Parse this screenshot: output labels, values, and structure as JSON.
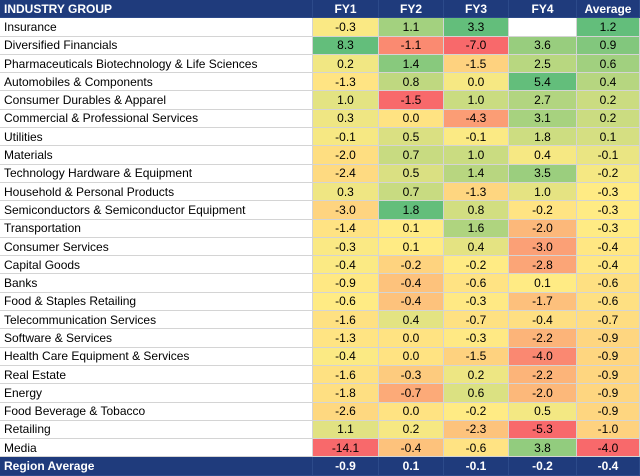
{
  "colors": {
    "header_bg": "#1f3b7c",
    "footer_bg": "#1f3b7c",
    "header_text": "#ffffff",
    "scale_low": "#f8696b",
    "scale_mid": "#ffeb84",
    "scale_high": "#63be7b"
  },
  "header": [
    "INDUSTRY GROUP",
    "FY1",
    "FY2",
    "FY3",
    "FY4",
    "Average"
  ],
  "rows": [
    {
      "name": "Insurance",
      "values": [
        "-0.3",
        "1.1",
        "3.3",
        "",
        "1.2"
      ]
    },
    {
      "name": "Diversified Financials",
      "values": [
        "8.3",
        "-1.1",
        "-7.0",
        "3.6",
        "0.9"
      ]
    },
    {
      "name": "Pharmaceuticals Biotechnology & Life Sciences",
      "values": [
        "0.2",
        "1.4",
        "-1.5",
        "2.5",
        "0.6"
      ]
    },
    {
      "name": "Automobiles & Components",
      "values": [
        "-1.3",
        "0.8",
        "0.0",
        "5.4",
        "0.4"
      ]
    },
    {
      "name": "Consumer Durables & Apparel",
      "values": [
        "1.0",
        "-1.5",
        "1.0",
        "2.7",
        "0.2"
      ]
    },
    {
      "name": "Commercial & Professional Services",
      "values": [
        "0.3",
        "0.0",
        "-4.3",
        "3.1",
        "0.2"
      ]
    },
    {
      "name": "Utilities",
      "values": [
        "-0.1",
        "0.5",
        "-0.1",
        "1.8",
        "0.1"
      ]
    },
    {
      "name": "Materials",
      "values": [
        "-2.0",
        "0.7",
        "1.0",
        "0.4",
        "-0.1"
      ]
    },
    {
      "name": "Technology Hardware & Equipment",
      "values": [
        "-2.4",
        "0.5",
        "1.4",
        "3.5",
        "-0.2"
      ]
    },
    {
      "name": "Household & Personal Products",
      "values": [
        "0.3",
        "0.7",
        "-1.3",
        "1.0",
        "-0.3"
      ]
    },
    {
      "name": "Semiconductors & Semiconductor Equipment",
      "values": [
        "-3.0",
        "1.8",
        "0.8",
        "-0.2",
        "-0.3"
      ]
    },
    {
      "name": "Transportation",
      "values": [
        "-1.4",
        "0.1",
        "1.6",
        "-2.0",
        "-0.3"
      ]
    },
    {
      "name": "Consumer Services",
      "values": [
        "-0.3",
        "0.1",
        "0.4",
        "-3.0",
        "-0.4"
      ]
    },
    {
      "name": "Capital Goods",
      "values": [
        "-0.4",
        "-0.2",
        "-0.2",
        "-2.8",
        "-0.4"
      ]
    },
    {
      "name": "Banks",
      "values": [
        "-0.9",
        "-0.4",
        "-0.6",
        "0.1",
        "-0.6"
      ]
    },
    {
      "name": "Food & Staples Retailing",
      "values": [
        "-0.6",
        "-0.4",
        "-0.3",
        "-1.7",
        "-0.6"
      ]
    },
    {
      "name": "Telecommunication Services",
      "values": [
        "-1.6",
        "0.4",
        "-0.7",
        "-0.4",
        "-0.7"
      ]
    },
    {
      "name": "Software & Services",
      "values": [
        "-1.3",
        "0.0",
        "-0.3",
        "-2.2",
        "-0.9"
      ]
    },
    {
      "name": "Health Care Equipment & Services",
      "values": [
        "-0.4",
        "0.0",
        "-1.5",
        "-4.0",
        "-0.9"
      ]
    },
    {
      "name": "Real Estate",
      "values": [
        "-1.6",
        "-0.3",
        "0.2",
        "-2.2",
        "-0.9"
      ]
    },
    {
      "name": "Energy",
      "values": [
        "-1.8",
        "-0.7",
        "0.6",
        "-2.0",
        "-0.9"
      ]
    },
    {
      "name": "Food Beverage & Tobacco",
      "values": [
        "-2.6",
        "0.0",
        "-0.2",
        "0.5",
        "-0.9"
      ]
    },
    {
      "name": "Retailing",
      "values": [
        "1.1",
        "0.2",
        "-2.3",
        "-5.3",
        "-1.0"
      ]
    },
    {
      "name": "Media",
      "values": [
        "-14.1",
        "-0.4",
        "-0.6",
        "3.8",
        "-4.0"
      ]
    }
  ],
  "footer": {
    "name": "Region Average",
    "values": [
      "-0.9",
      "0.1",
      "-0.1",
      "-0.2",
      "-0.4"
    ]
  }
}
